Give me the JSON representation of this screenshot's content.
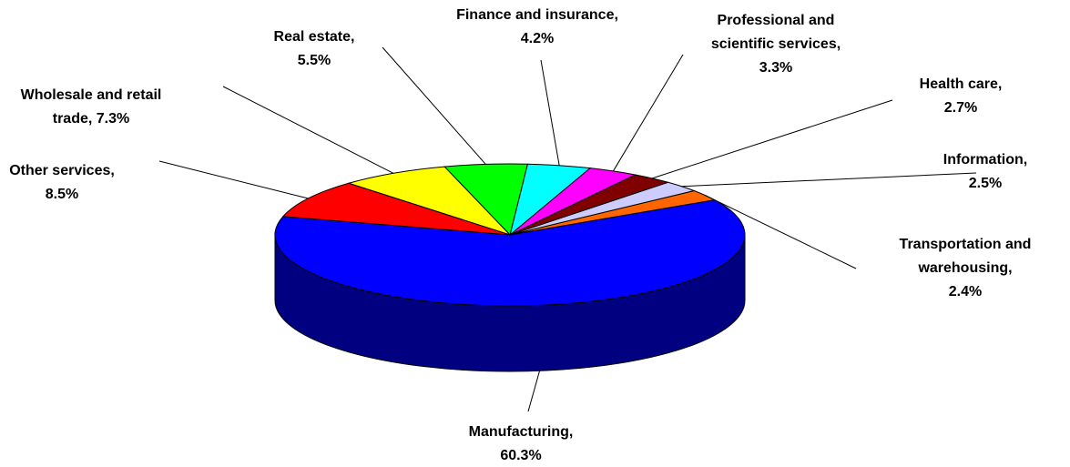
{
  "chart_data": {
    "type": "pie",
    "categories": [
      "Manufacturing,",
      "Transportation and warehousing,",
      "Information,",
      "Health care,",
      "Professional and scientific services,",
      "Finance and insurance,",
      "Real estate,",
      "Wholesale and retail trade,",
      "Other services,"
    ],
    "values": [
      60.3,
      2.4,
      2.5,
      2.7,
      3.3,
      4.2,
      5.5,
      7.3,
      8.5
    ],
    "value_labels": [
      "60.3%",
      "2.4%",
      "2.5%",
      "2.7%",
      "3.3%",
      "4.2%",
      "5.5%",
      "7.3%",
      "8.5%"
    ],
    "colors": [
      "#0000ff",
      "#ff6600",
      "#ccccff",
      "#800000",
      "#ff00ff",
      "#00ffff",
      "#00ff00",
      "#ffff00",
      "#ff0000"
    ],
    "side_color": "#000080"
  }
}
